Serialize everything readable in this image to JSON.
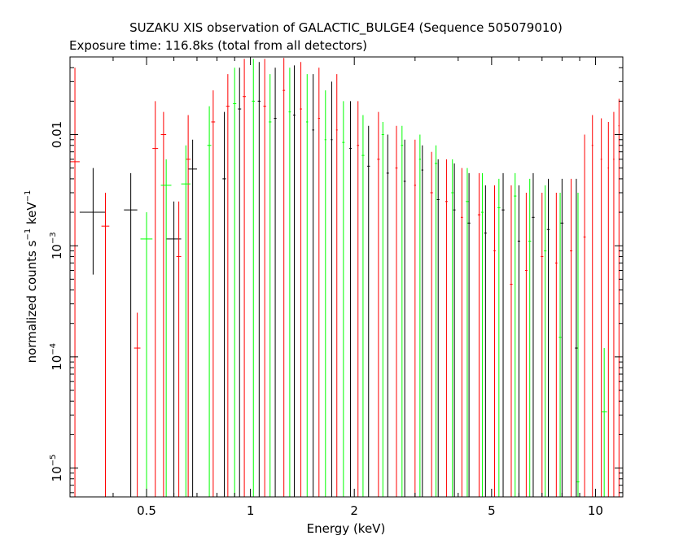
{
  "chart_data": {
    "type": "scatter",
    "title": "SUZAKU XIS observation of GALACTIC_BULGE4 (Sequence 505079010)",
    "subtitle": "Exposure time: 116.8ks (total from all detectors)",
    "xlabel": "Energy (keV)",
    "ylabel": "normalized counts s",
    "ylabel_sup1": "−1",
    "ylabel_mid": " keV",
    "ylabel_sup2": "−1",
    "xscale": "log",
    "yscale": "log",
    "xlim": [
      0.3,
      12
    ],
    "ylim": [
      5.5e-06,
      0.05
    ],
    "x_ticks": [
      {
        "value": 0.5,
        "label": "0.5"
      },
      {
        "value": 1,
        "label": "1"
      },
      {
        "value": 2,
        "label": "2"
      },
      {
        "value": 5,
        "label": "5"
      },
      {
        "value": 10,
        "label": "10"
      }
    ],
    "y_ticks": [
      {
        "value": 0.01,
        "label": "0.01",
        "base": "",
        "exp": ""
      },
      {
        "value": 0.001,
        "label": "",
        "base": "10",
        "exp": "−3"
      },
      {
        "value": 0.0001,
        "label": "",
        "base": "10",
        "exp": "−4"
      },
      {
        "value": 1e-05,
        "label": "",
        "base": "10",
        "exp": "−5"
      }
    ],
    "series": [
      {
        "color": "#000000",
        "points": [
          {
            "x": 0.35,
            "y": 0.002,
            "xerr": 0.03,
            "ylo": 0.00055,
            "yhi": 0.005
          },
          {
            "x": 0.45,
            "y": 0.0021,
            "xerr": 0.02,
            "ylo": 5.5e-06,
            "yhi": 0.0045
          },
          {
            "x": 0.6,
            "y": 0.00115,
            "xerr": 0.03,
            "ylo": 5.5e-06,
            "yhi": 0.0025
          },
          {
            "x": 0.68,
            "y": 0.0049,
            "xerr": 0.02,
            "ylo": 5.5e-06,
            "yhi": 0.009
          },
          {
            "x": 0.84,
            "y": 0.004,
            "xerr": 0.01,
            "ylo": 5.5e-06,
            "yhi": 0.016
          },
          {
            "x": 0.93,
            "y": 0.017,
            "xerr": 0.01,
            "ylo": 5.5e-06,
            "yhi": 0.04
          },
          {
            "x": 1.06,
            "y": 0.02,
            "xerr": 0.01,
            "ylo": 5.5e-06,
            "yhi": 0.045
          },
          {
            "x": 1.18,
            "y": 0.014,
            "xerr": 0.01,
            "ylo": 5.5e-06,
            "yhi": 0.04
          },
          {
            "x": 1.34,
            "y": 0.015,
            "xerr": 0.01,
            "ylo": 5.5e-06,
            "yhi": 0.042
          },
          {
            "x": 1.52,
            "y": 0.011,
            "xerr": 0.01,
            "ylo": 5.5e-06,
            "yhi": 0.035
          },
          {
            "x": 1.72,
            "y": 0.009,
            "xerr": 0.01,
            "ylo": 5.5e-06,
            "yhi": 0.03
          },
          {
            "x": 1.95,
            "y": 0.0075,
            "xerr": 0.015,
            "ylo": 5.5e-06,
            "yhi": 0.02
          },
          {
            "x": 2.2,
            "y": 0.0052,
            "xerr": 0.02,
            "ylo": 5.5e-06,
            "yhi": 0.012
          },
          {
            "x": 2.5,
            "y": 0.0045,
            "xerr": 0.02,
            "ylo": 5.5e-06,
            "yhi": 0.01
          },
          {
            "x": 2.8,
            "y": 0.0038,
            "xerr": 0.02,
            "ylo": 5.5e-06,
            "yhi": 0.009
          },
          {
            "x": 3.15,
            "y": 0.0048,
            "xerr": 0.02,
            "ylo": 5.5e-06,
            "yhi": 0.008
          },
          {
            "x": 3.5,
            "y": 0.0026,
            "xerr": 0.03,
            "ylo": 5.5e-06,
            "yhi": 0.006
          },
          {
            "x": 3.9,
            "y": 0.0021,
            "xerr": 0.03,
            "ylo": 5.5e-06,
            "yhi": 0.0055
          },
          {
            "x": 4.3,
            "y": 0.0016,
            "xerr": 0.04,
            "ylo": 5.5e-06,
            "yhi": 0.0045
          },
          {
            "x": 4.8,
            "y": 0.0013,
            "xerr": 0.04,
            "ylo": 5.5e-06,
            "yhi": 0.0035
          },
          {
            "x": 5.4,
            "y": 0.0021,
            "xerr": 0.05,
            "ylo": 5.5e-06,
            "yhi": 0.0045
          },
          {
            "x": 6.0,
            "y": 0.0011,
            "xerr": 0.05,
            "ylo": 5.5e-06,
            "yhi": 0.0035
          },
          {
            "x": 6.6,
            "y": 0.0018,
            "xerr": 0.06,
            "ylo": 5.5e-06,
            "yhi": 0.0045
          },
          {
            "x": 7.3,
            "y": 0.0014,
            "xerr": 0.07,
            "ylo": 5.5e-06,
            "yhi": 0.004
          },
          {
            "x": 8.0,
            "y": 0.0016,
            "xerr": 0.08,
            "ylo": 5.5e-06,
            "yhi": 0.004
          },
          {
            "x": 8.8,
            "y": 0.00012,
            "xerr": 0.08,
            "ylo": 5.5e-06,
            "yhi": 0.004
          }
        ]
      },
      {
        "color": "#ff0000",
        "points": [
          {
            "x": 0.31,
            "y": 0.0057,
            "xerr": 0.01,
            "ylo": 5.5e-06,
            "yhi": 0.04
          },
          {
            "x": 0.38,
            "y": 0.0015,
            "xerr": 0.01,
            "ylo": 5.5e-06,
            "yhi": 0.003
          },
          {
            "x": 0.47,
            "y": 0.00012,
            "xerr": 0.01,
            "ylo": 5.5e-06,
            "yhi": 0.00025
          },
          {
            "x": 0.53,
            "y": 0.0075,
            "xerr": 0.01,
            "ylo": 5.5e-06,
            "yhi": 0.02
          },
          {
            "x": 0.56,
            "y": 0.01,
            "xerr": 0.01,
            "ylo": 5.5e-06,
            "yhi": 0.016
          },
          {
            "x": 0.62,
            "y": 0.0008,
            "xerr": 0.01,
            "ylo": 5.5e-06,
            "yhi": 0.0025
          },
          {
            "x": 0.66,
            "y": 0.006,
            "xerr": 0.01,
            "ylo": 5.5e-06,
            "yhi": 0.015
          },
          {
            "x": 0.78,
            "y": 0.013,
            "xerr": 0.01,
            "ylo": 5.5e-06,
            "yhi": 0.025
          },
          {
            "x": 0.86,
            "y": 0.018,
            "xerr": 0.01,
            "ylo": 5.5e-06,
            "yhi": 0.035
          },
          {
            "x": 0.96,
            "y": 0.022,
            "xerr": 0.01,
            "ylo": 5.5e-06,
            "yhi": 0.048
          },
          {
            "x": 1.1,
            "y": 0.018,
            "xerr": 0.01,
            "ylo": 5.5e-06,
            "yhi": 0.048
          },
          {
            "x": 1.25,
            "y": 0.025,
            "xerr": 0.01,
            "ylo": 5.5e-06,
            "yhi": 0.049
          },
          {
            "x": 1.4,
            "y": 0.017,
            "xerr": 0.01,
            "ylo": 5.5e-06,
            "yhi": 0.045
          },
          {
            "x": 1.58,
            "y": 0.014,
            "xerr": 0.01,
            "ylo": 5.5e-06,
            "yhi": 0.04
          },
          {
            "x": 1.78,
            "y": 0.011,
            "xerr": 0.01,
            "ylo": 5.5e-06,
            "yhi": 0.035
          },
          {
            "x": 2.05,
            "y": 0.008,
            "xerr": 0.015,
            "ylo": 5.5e-06,
            "yhi": 0.02
          },
          {
            "x": 2.35,
            "y": 0.006,
            "xerr": 0.02,
            "ylo": 5.5e-06,
            "yhi": 0.016
          },
          {
            "x": 2.65,
            "y": 0.005,
            "xerr": 0.02,
            "ylo": 5.5e-06,
            "yhi": 0.012
          },
          {
            "x": 3.0,
            "y": 0.0035,
            "xerr": 0.02,
            "ylo": 5.5e-06,
            "yhi": 0.009
          },
          {
            "x": 3.35,
            "y": 0.003,
            "xerr": 0.03,
            "ylo": 5.5e-06,
            "yhi": 0.007
          },
          {
            "x": 3.7,
            "y": 0.0025,
            "xerr": 0.03,
            "ylo": 5.5e-06,
            "yhi": 0.006
          },
          {
            "x": 4.1,
            "y": 0.0018,
            "xerr": 0.03,
            "ylo": 5.5e-06,
            "yhi": 0.005
          },
          {
            "x": 4.6,
            "y": 0.0019,
            "xerr": 0.04,
            "ylo": 5.5e-06,
            "yhi": 0.0045
          },
          {
            "x": 5.1,
            "y": 0.0009,
            "xerr": 0.04,
            "ylo": 5.5e-06,
            "yhi": 0.0035
          },
          {
            "x": 5.7,
            "y": 0.00045,
            "xerr": 0.05,
            "ylo": 5.5e-06,
            "yhi": 0.0035
          },
          {
            "x": 6.3,
            "y": 0.0006,
            "xerr": 0.05,
            "ylo": 5.5e-06,
            "yhi": 0.003
          },
          {
            "x": 7.0,
            "y": 0.0008,
            "xerr": 0.06,
            "ylo": 5.5e-06,
            "yhi": 0.003
          },
          {
            "x": 7.7,
            "y": 0.0007,
            "xerr": 0.06,
            "ylo": 5.5e-06,
            "yhi": 0.003
          },
          {
            "x": 8.5,
            "y": 0.0009,
            "xerr": 0.07,
            "ylo": 5.5e-06,
            "yhi": 0.004
          },
          {
            "x": 9.3,
            "y": 0.0012,
            "xerr": 0.07,
            "ylo": 5.5e-06,
            "yhi": 0.01
          },
          {
            "x": 9.8,
            "y": 0.008,
            "xerr": 0.05,
            "ylo": 5.5e-06,
            "yhi": 0.015
          },
          {
            "x": 10.4,
            "y": 0.006,
            "xerr": 0.05,
            "ylo": 5.5e-06,
            "yhi": 0.014
          },
          {
            "x": 10.9,
            "y": 0.005,
            "xerr": 0.05,
            "ylo": 5.5e-06,
            "yhi": 0.013
          },
          {
            "x": 11.3,
            "y": 0.006,
            "xerr": 0.05,
            "ylo": 5.5e-06,
            "yhi": 0.016
          },
          {
            "x": 11.7,
            "y": 0.012,
            "xerr": 0.05,
            "ylo": 5.5e-06,
            "yhi": 0.021
          }
        ]
      },
      {
        "color": "#00ff00",
        "points": [
          {
            "x": 0.5,
            "y": 0.00115,
            "xerr": 0.02,
            "ylo": 5.5e-06,
            "yhi": 0.002
          },
          {
            "x": 0.57,
            "y": 0.0035,
            "xerr": 0.02,
            "ylo": 5.5e-06,
            "yhi": 0.006
          },
          {
            "x": 0.65,
            "y": 0.0036,
            "xerr": 0.02,
            "ylo": 5.5e-06,
            "yhi": 0.008
          },
          {
            "x": 0.76,
            "y": 0.008,
            "xerr": 0.01,
            "ylo": 5.5e-06,
            "yhi": 0.018
          },
          {
            "x": 0.9,
            "y": 0.019,
            "xerr": 0.01,
            "ylo": 5.5e-06,
            "yhi": 0.04
          },
          {
            "x": 1.02,
            "y": 0.02,
            "xerr": 0.01,
            "ylo": 5.5e-06,
            "yhi": 0.048
          },
          {
            "x": 1.14,
            "y": 0.013,
            "xerr": 0.01,
            "ylo": 5.5e-06,
            "yhi": 0.035
          },
          {
            "x": 1.3,
            "y": 0.016,
            "xerr": 0.01,
            "ylo": 5.5e-06,
            "yhi": 0.04
          },
          {
            "x": 1.46,
            "y": 0.013,
            "xerr": 0.01,
            "ylo": 5.5e-06,
            "yhi": 0.035
          },
          {
            "x": 1.65,
            "y": 0.009,
            "xerr": 0.01,
            "ylo": 5.5e-06,
            "yhi": 0.025
          },
          {
            "x": 1.86,
            "y": 0.0085,
            "xerr": 0.015,
            "ylo": 5.5e-06,
            "yhi": 0.02
          },
          {
            "x": 2.12,
            "y": 0.0065,
            "xerr": 0.02,
            "ylo": 5.5e-06,
            "yhi": 0.015
          },
          {
            "x": 2.42,
            "y": 0.01,
            "xerr": 0.02,
            "ylo": 5.5e-06,
            "yhi": 0.013
          },
          {
            "x": 2.75,
            "y": 0.008,
            "xerr": 0.02,
            "ylo": 5.5e-06,
            "yhi": 0.012
          },
          {
            "x": 3.1,
            "y": 0.006,
            "xerr": 0.02,
            "ylo": 5.5e-06,
            "yhi": 0.01
          },
          {
            "x": 3.45,
            "y": 0.0055,
            "xerr": 0.03,
            "ylo": 5.5e-06,
            "yhi": 0.008
          },
          {
            "x": 3.85,
            "y": 0.003,
            "xerr": 0.03,
            "ylo": 5.5e-06,
            "yhi": 0.006
          },
          {
            "x": 4.25,
            "y": 0.0025,
            "xerr": 0.04,
            "ylo": 5.5e-06,
            "yhi": 0.005
          },
          {
            "x": 4.7,
            "y": 0.002,
            "xerr": 0.04,
            "ylo": 5.5e-06,
            "yhi": 0.0045
          },
          {
            "x": 5.25,
            "y": 0.0022,
            "xerr": 0.05,
            "ylo": 5.5e-06,
            "yhi": 0.004
          },
          {
            "x": 5.85,
            "y": 0.0028,
            "xerr": 0.05,
            "ylo": 5.5e-06,
            "yhi": 0.0045
          },
          {
            "x": 6.45,
            "y": 0.0011,
            "xerr": 0.06,
            "ylo": 5.5e-06,
            "yhi": 0.004
          },
          {
            "x": 7.15,
            "y": 0.0009,
            "xerr": 0.06,
            "ylo": 5.5e-06,
            "yhi": 0.0035
          },
          {
            "x": 7.9,
            "y": 0.00015,
            "xerr": 0.07,
            "ylo": 5.5e-06,
            "yhi": 0.003
          },
          {
            "x": 8.9,
            "y": 7.5e-06,
            "xerr": 0.08,
            "ylo": 5.5e-06,
            "yhi": 0.003
          },
          {
            "x": 10.6,
            "y": 3.2e-05,
            "xerr": 0.2,
            "ylo": 5.5e-06,
            "yhi": 0.00012
          }
        ]
      }
    ]
  }
}
